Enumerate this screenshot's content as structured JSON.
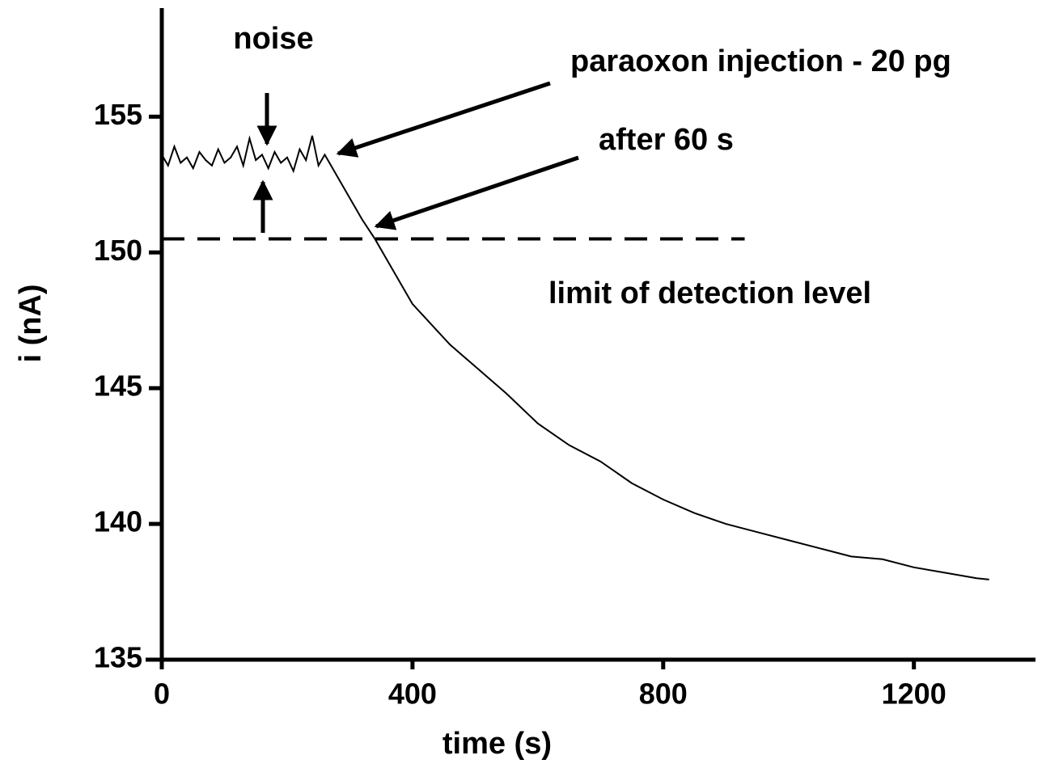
{
  "chart_data": {
    "type": "line",
    "x_label": "time (s)",
    "y_label": "i (nA)",
    "xlim": [
      0,
      1394
    ],
    "ylim": [
      135,
      159
    ],
    "xticks": [
      0,
      400,
      800,
      1200
    ],
    "yticks": [
      135,
      140,
      145,
      150,
      155
    ],
    "series": [
      {
        "color": "#000000",
        "x": [
          0,
          10,
          20,
          30,
          40,
          50,
          60,
          70,
          80,
          90,
          100,
          110,
          120,
          130,
          140,
          150,
          160,
          170,
          180,
          190,
          200,
          210,
          220,
          230,
          240,
          250,
          260,
          270,
          280,
          300,
          320,
          340,
          360,
          380,
          400,
          420,
          440,
          460,
          480,
          500,
          550,
          600,
          650,
          700,
          750,
          800,
          850,
          900,
          950,
          1000,
          1050,
          1100,
          1150,
          1200,
          1250,
          1300,
          1320
        ],
        "values": [
          153.6,
          153.2,
          153.9,
          153.3,
          153.5,
          153.1,
          153.7,
          153.4,
          153.2,
          153.8,
          153.3,
          153.5,
          153.9,
          153.2,
          154.2,
          153.4,
          153.6,
          153.1,
          153.7,
          153.3,
          153.5,
          153.0,
          153.8,
          153.4,
          154.3,
          153.2,
          153.6,
          153.2,
          152.8,
          152.0,
          151.2,
          150.5,
          149.7,
          148.9,
          148.1,
          147.6,
          147.1,
          146.6,
          146.2,
          145.8,
          144.8,
          143.7,
          142.9,
          142.3,
          141.5,
          140.9,
          140.4,
          140.0,
          139.7,
          139.4,
          139.1,
          138.8,
          138.7,
          138.4,
          138.2,
          138.0,
          137.95
        ]
      }
    ],
    "threshold": {
      "y": 150.5,
      "x": [
        0,
        930
      ],
      "label": "limit of detection level"
    },
    "annotations": [
      "noise",
      "paraoxon injection - 20 pg",
      "after 60 s"
    ]
  }
}
